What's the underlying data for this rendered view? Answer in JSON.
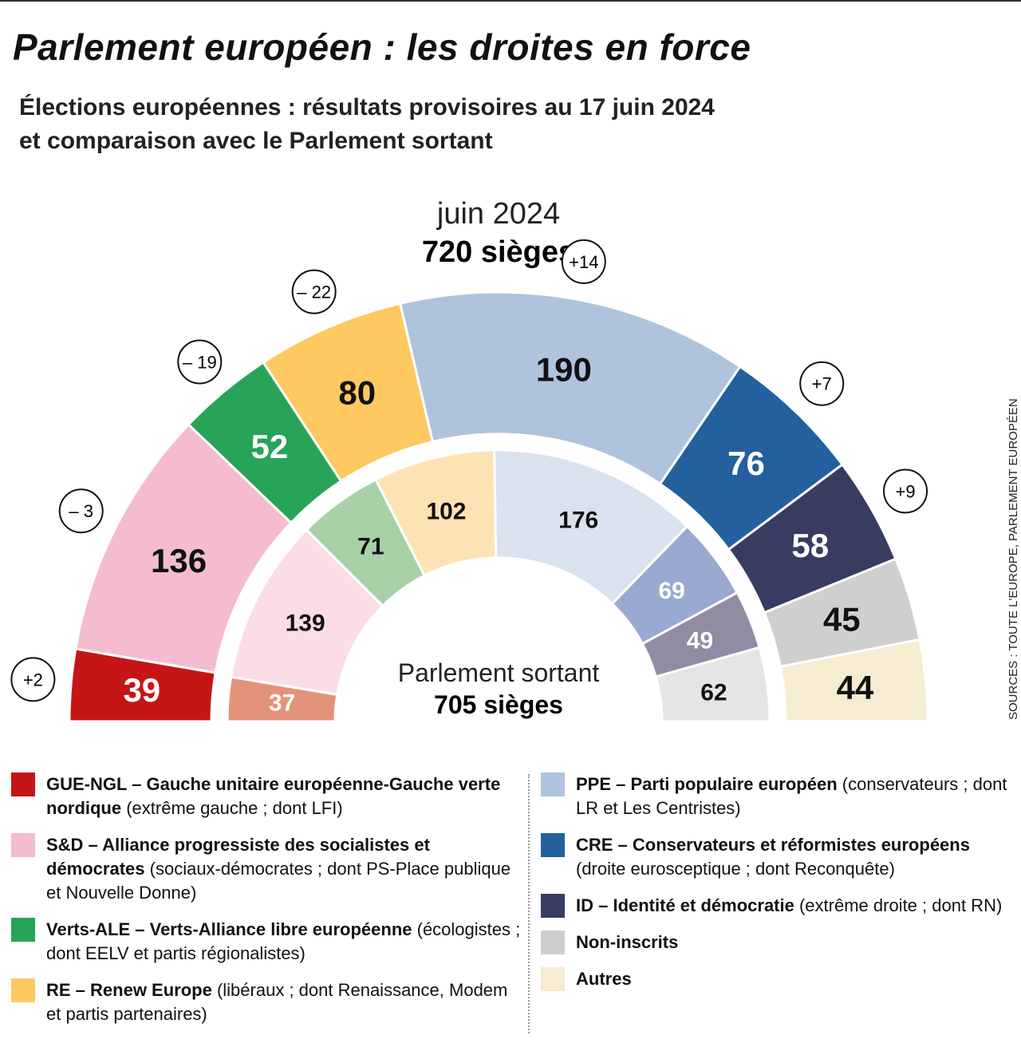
{
  "title": "Parlement européen : les droites en force",
  "subtitle_line1": "Élections européennes : résultats provisoires au 17 juin 2024",
  "subtitle_line2": "et comparaison avec le Parlement sortant",
  "source": "SOURCES : TOUTE L'EUROPE, PARLEMENT EUROPÉEN",
  "chart_data": {
    "type": "pie",
    "subtype": "parliament-hemicycle",
    "outer": {
      "label": "juin 2024",
      "total_label": "720 sièges",
      "groups": [
        "GUE-NGL",
        "S&D",
        "Verts-ALE",
        "RE",
        "PPE",
        "CRE",
        "ID",
        "Non-inscrits",
        "Autres"
      ],
      "values": [
        39,
        136,
        52,
        80,
        190,
        76,
        58,
        45,
        44
      ],
      "changes": [
        "+2",
        "– 3",
        "– 19",
        "– 22",
        "+14",
        "+7",
        "+9",
        null,
        null
      ],
      "colors": [
        "#c51517",
        "#f5bcd0",
        "#27a457",
        "#fec960",
        "#afc3dc",
        "#22609e",
        "#383c60",
        "#cfcfcf",
        "#f5ecd2"
      ]
    },
    "inner": {
      "label": "Parlement sortant",
      "total_label": "705 sièges",
      "groups": [
        "GUE-NGL",
        "S&D",
        "Verts-ALE",
        "RE",
        "PPE",
        "CRE",
        "ID",
        "Non-inscrits"
      ],
      "values": [
        37,
        139,
        71,
        102,
        176,
        69,
        49,
        62
      ],
      "colors": [
        "#e3937a",
        "#fbdde6",
        "#a8d1a8",
        "#fde3b4",
        "#dbe2ef",
        "#9aa9cf",
        "#918ca4",
        "#e5e5e5"
      ]
    }
  },
  "legend_left": [
    {
      "color": "#c51517",
      "bold": "GUE-NGL – Gauche unitaire européenne-Gauche verte nordique",
      "rest": " (extrême gauche ; dont LFI)"
    },
    {
      "color": "#f5bcd0",
      "bold": "S&D – Alliance progressiste des socialistes et démocrates",
      "rest": " (sociaux-démocrates ; dont PS-Place publique et Nouvelle Donne)"
    },
    {
      "color": "#27a457",
      "bold": "Verts-ALE – Verts-Alliance libre européenne",
      "rest": " (écologistes ; dont EELV et partis régionalistes)"
    },
    {
      "color": "#fec960",
      "bold": "RE – Renew Europe",
      "rest": " (libéraux ; dont Renaissance, Modem et partis partenaires)"
    }
  ],
  "legend_right": [
    {
      "color": "#afc3dc",
      "bold": "PPE – Parti populaire européen",
      "rest": " (conservateurs ; dont LR et Les Centristes)"
    },
    {
      "color": "#22609e",
      "bold": "CRE – Conservateurs et réformistes européens",
      "rest": " (droite eurosceptique ; dont Reconquête)"
    },
    {
      "color": "#383c60",
      "bold": "ID – Identité et démocratie",
      "rest": " (extrême droite ; dont RN)"
    },
    {
      "color": "#cfcfcf",
      "bold": "Non-inscrits",
      "rest": ""
    },
    {
      "color": "#f5ecd2",
      "bold": "Autres",
      "rest": ""
    }
  ]
}
